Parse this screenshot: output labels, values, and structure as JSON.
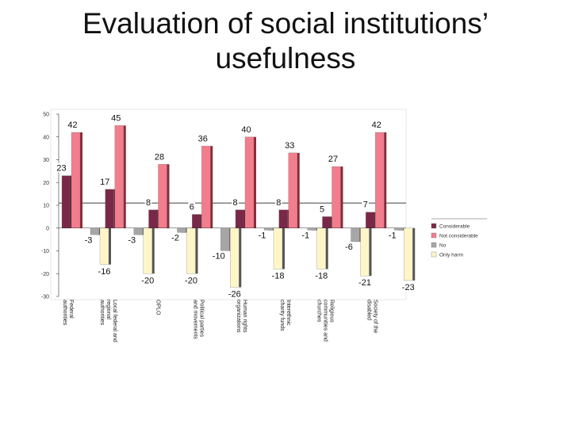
{
  "slide": {
    "title_line1": "Evaluation of social institutions’",
    "title_line2": "usefulness"
  },
  "chart_data": {
    "type": "bar",
    "title": "Evaluation of social institutions’ usefulness",
    "categories": [
      "Federal authorities",
      "Local federal and regional authorities",
      "OPLO",
      "Political parties and movements",
      "Human rights organizations",
      "Interethnic charity funds",
      "Religious communities and churches",
      "Society of the disabled"
    ],
    "series": [
      {
        "name": "Considerable",
        "values": [
          23,
          17,
          8,
          6,
          8,
          8,
          5,
          7
        ],
        "color": "#7a2848"
      },
      {
        "name": "Not considerable",
        "values": [
          42,
          45,
          28,
          36,
          40,
          33,
          27,
          42
        ],
        "color": "#f27d8c"
      },
      {
        "name": "No",
        "values": [
          -3,
          -3,
          -2,
          -10,
          -1,
          -1,
          -6,
          -1
        ],
        "color": "#a6a6a6"
      },
      {
        "name": "Only harm",
        "values": [
          -16,
          -20,
          -20,
          -26,
          -18,
          -18,
          -21,
          -23
        ],
        "color": "#fff6c8"
      }
    ],
    "ylim": [
      -30,
      50
    ],
    "yticks": [
      50,
      40,
      30,
      20,
      10,
      0,
      -10,
      -20,
      -30
    ],
    "grid": false,
    "legend_position": "right"
  }
}
